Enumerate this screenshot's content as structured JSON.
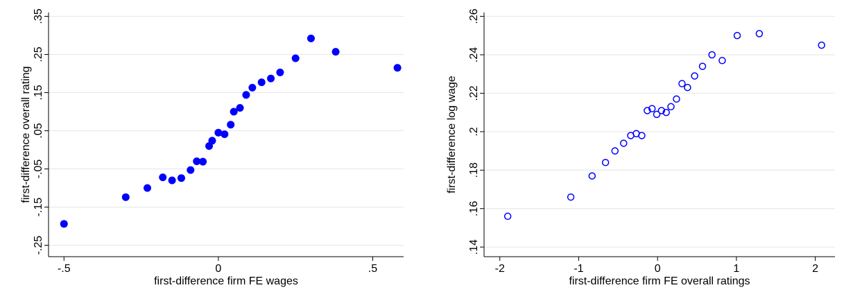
{
  "charts": [
    {
      "chart_data": {
        "type": "scatter",
        "xlabel": "first-difference firm FE wages",
        "ylabel": "first-difference overall rating",
        "xlim": [
          -0.55,
          0.6
        ],
        "ylim": [
          -0.28,
          0.36
        ],
        "xticks": [
          -0.5,
          0,
          0.5
        ],
        "xtick_labels": [
          "-.5",
          "0",
          ".5"
        ],
        "yticks": [
          -0.25,
          -0.15,
          -0.05,
          0.05,
          0.15,
          0.25,
          0.35
        ],
        "ytick_labels": [
          "-.25",
          "-.15",
          "-.05",
          ".05",
          ".15",
          ".25",
          ".35"
        ],
        "grid": true,
        "marker": "filled-circle",
        "color": "#0000ff",
        "x": [
          -0.5,
          -0.3,
          -0.23,
          -0.18,
          -0.15,
          -0.12,
          -0.09,
          -0.07,
          -0.05,
          -0.03,
          -0.02,
          0.0,
          0.02,
          0.04,
          0.05,
          0.07,
          0.09,
          0.11,
          0.14,
          0.17,
          0.2,
          0.25,
          0.3,
          0.38,
          0.58
        ],
        "y": [
          -0.194,
          -0.124,
          -0.1,
          -0.072,
          -0.08,
          -0.074,
          -0.053,
          -0.03,
          -0.031,
          0.01,
          0.024,
          0.045,
          0.041,
          0.066,
          0.1,
          0.11,
          0.144,
          0.163,
          0.177,
          0.187,
          0.203,
          0.24,
          0.292,
          0.257,
          0.215
        ]
      }
    },
    {
      "chart_data": {
        "type": "scatter",
        "xlabel": "first-difference firm FE overall ratings",
        "ylabel": "first-difference log wage",
        "xlim": [
          -2.2,
          2.25
        ],
        "ylim": [
          0.135,
          0.262
        ],
        "xticks": [
          -2,
          -1,
          0,
          1,
          2
        ],
        "xtick_labels": [
          "-2",
          "-1",
          "0",
          "1",
          "2"
        ],
        "yticks": [
          0.14,
          0.16,
          0.18,
          0.2,
          0.22,
          0.24,
          0.26
        ],
        "ytick_labels": [
          ".14",
          ".16",
          ".18",
          ".2",
          ".22",
          ".24",
          ".26"
        ],
        "grid": true,
        "marker": "hollow-circle",
        "color": "#0000ff",
        "x": [
          -1.9,
          -1.1,
          -0.83,
          -0.66,
          -0.54,
          -0.43,
          -0.34,
          -0.27,
          -0.2,
          -0.13,
          -0.07,
          -0.01,
          0.05,
          0.11,
          0.17,
          0.24,
          0.31,
          0.38,
          0.47,
          0.57,
          0.69,
          0.82,
          1.01,
          1.29,
          2.08
        ],
        "y": [
          0.156,
          0.166,
          0.177,
          0.184,
          0.19,
          0.194,
          0.198,
          0.199,
          0.198,
          0.211,
          0.212,
          0.209,
          0.211,
          0.21,
          0.213,
          0.217,
          0.225,
          0.223,
          0.229,
          0.234,
          0.24,
          0.237,
          0.25,
          0.251,
          0.245
        ]
      }
    }
  ]
}
